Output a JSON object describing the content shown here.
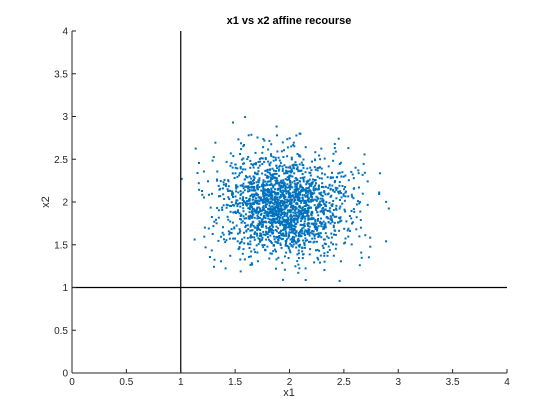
{
  "chart_data": {
    "type": "scatter",
    "title": "x1 vs x2 affine recourse",
    "xlabel": "x1",
    "ylabel": "x2",
    "xlim": [
      0,
      4
    ],
    "ylim": [
      0,
      4
    ],
    "xticks": [
      "0",
      "0.5",
      "1",
      "1.5",
      "2",
      "2.5",
      "3",
      "3.5",
      "4"
    ],
    "yticks": [
      "0",
      "0.5",
      "1",
      "1.5",
      "2",
      "2.5",
      "3",
      "3.5",
      "4"
    ],
    "grid": false,
    "legend": "none",
    "reference_lines": [
      {
        "orientation": "vertical",
        "x": 1
      },
      {
        "orientation": "horizontal",
        "y": 1
      }
    ],
    "series": [
      {
        "color": "#0072BD",
        "marker": "dot",
        "approx_count": 2000,
        "x_mean": 1.95,
        "y_mean": 1.95,
        "x_sd": 0.3,
        "y_sd": 0.3,
        "x_range": [
          0.8,
          3.15
        ],
        "y_range": [
          0.75,
          3.05
        ]
      }
    ],
    "line_color": "#000000",
    "axis_color": "#262626"
  }
}
